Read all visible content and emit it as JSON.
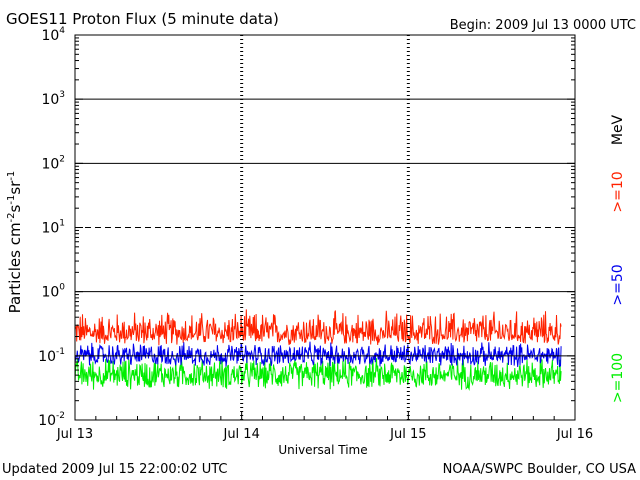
{
  "header": {
    "title": "GOES11 Proton Flux (5 minute data)",
    "begin": "Begin: 2009 Jul 13 0000 UTC"
  },
  "footer": {
    "updated": "Updated 2009 Jul 15 22:00:02 UTC",
    "credit": "NOAA/SWPC Boulder, CO USA"
  },
  "colors": {
    "ge10": "#ff2200",
    "ge50": "#0000ee",
    "ge100": "#00ee00",
    "axis": "#000000"
  },
  "chart_data": {
    "type": "line",
    "title": "GOES11 Proton Flux (5 minute data)",
    "xlabel": "Universal Time",
    "ylabel": "Particles cm^-2 s^-1 sr^-1",
    "yscale": "log",
    "ylim": [
      0.01,
      10000
    ],
    "xlim": [
      "2009-07-13 00:00",
      "2009-07-16 00:00"
    ],
    "x_ticks": [
      "Jul 13",
      "Jul 14",
      "Jul 15",
      "Jul 16"
    ],
    "y_ticks": [
      {
        "base": "10",
        "exp": "-2"
      },
      {
        "base": "10",
        "exp": "-1"
      },
      {
        "base": "10",
        "exp": "0"
      },
      {
        "base": "10",
        "exp": "1"
      },
      {
        "base": "10",
        "exp": "2"
      },
      {
        "base": "10",
        "exp": "3"
      },
      {
        "base": "10",
        "exp": "4"
      }
    ],
    "gridlines": [
      {
        "value": 1000,
        "style": "solid"
      },
      {
        "value": 100,
        "style": "solid"
      },
      {
        "value": 10,
        "style": "dashed"
      },
      {
        "value": 1,
        "style": "solid"
      },
      {
        "value": 0.1,
        "style": "solid"
      }
    ],
    "data_end": "2009-07-15 22:00",
    "units_label": "MeV",
    "series": [
      {
        "name": ">=10",
        "color": "#ff2200",
        "typical": 0.22,
        "min": 0.14,
        "max": 0.55
      },
      {
        "name": ">=50",
        "color": "#0000ee",
        "typical": 0.1,
        "min": 0.065,
        "max": 0.17
      },
      {
        "name": ">=100",
        "color": "#00ee00",
        "typical": 0.05,
        "min": 0.028,
        "max": 0.1
      }
    ]
  }
}
